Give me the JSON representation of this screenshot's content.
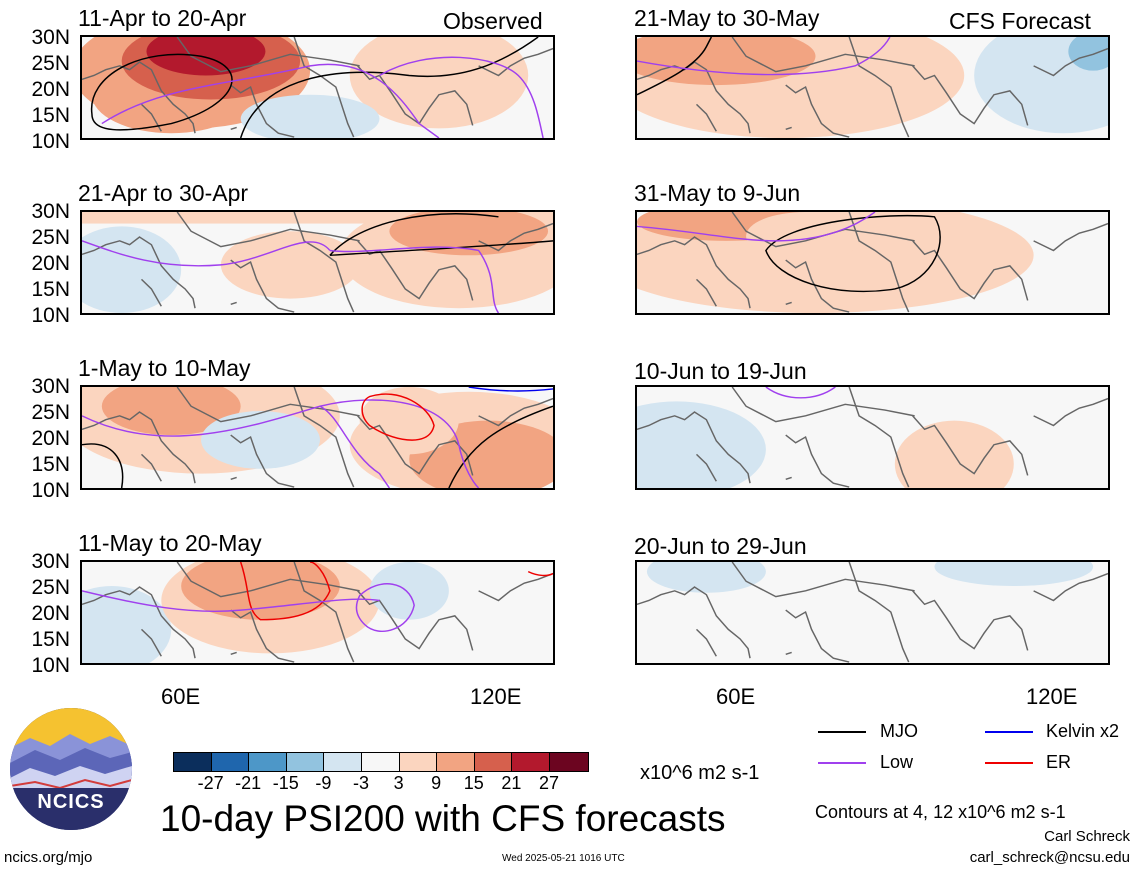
{
  "observed_label": "Observed",
  "forecast_label": "CFS Forecast",
  "observed_panels": [
    {
      "title": "11-Apr to 20-Apr"
    },
    {
      "title": "21-Apr to 30-Apr"
    },
    {
      "title": "1-May to 10-May"
    },
    {
      "title": "11-May to 20-May"
    }
  ],
  "forecast_panels": [
    {
      "title": "21-May to 30-May"
    },
    {
      "title": "31-May to 9-Jun"
    },
    {
      "title": "10-Jun to 19-Jun"
    },
    {
      "title": "20-Jun to 29-Jun"
    }
  ],
  "lat_ticks": [
    "30N",
    "25N",
    "20N",
    "15N",
    "10N"
  ],
  "lon_ticks": [
    "60E",
    "120E"
  ],
  "colorbar": {
    "colors": [
      "#0b2e5c",
      "#1f66ad",
      "#4d97c8",
      "#92c3df",
      "#d4e5f1",
      "#f7f7f7",
      "#fbd5bf",
      "#f2a482",
      "#d6604d",
      "#b3192d",
      "#6c0520"
    ],
    "ticks": [
      "-27",
      "-21",
      "-15",
      "-9",
      "-3",
      "3",
      "9",
      "15",
      "21",
      "27"
    ],
    "units": "x10^6 m2 s-1"
  },
  "legend": {
    "mjo": {
      "label": "MJO",
      "color": "#000000"
    },
    "kelvin": {
      "label": "Kelvin x2",
      "color": "#0000ee"
    },
    "low": {
      "label": "Low",
      "color": "#a040ee"
    },
    "er": {
      "label": "ER",
      "color": "#ee0000"
    }
  },
  "contours_note": "Contours at 4, 12 x10^6 m2 s-1",
  "main_title": "10-day PSI200 with CFS forecasts",
  "author": "Carl Schreck",
  "email": "carl_schreck@ncsu.edu",
  "website": "ncics.org/mjo",
  "timestamp": "Wed 2025-05-21 1016 UTC",
  "logo_text": "NCICS"
}
